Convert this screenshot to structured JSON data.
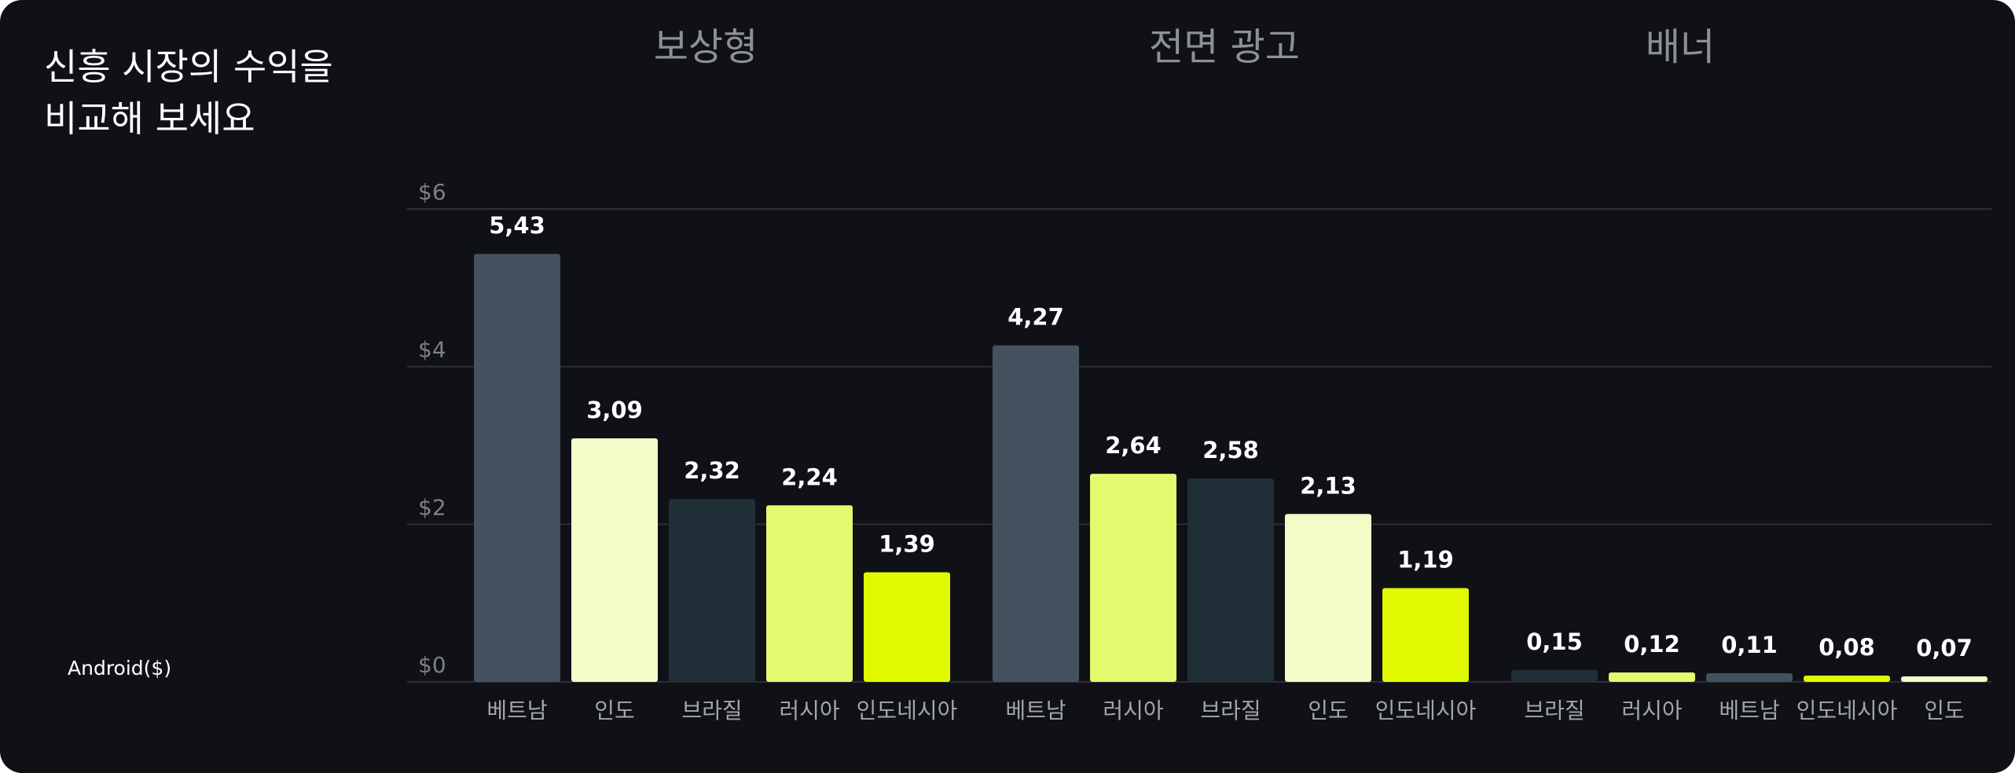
{
  "title": "신흥 시장의 수익을\n비교해 보세요",
  "legend_label": "Android($)",
  "colors": {
    "background": "#0f1117",
    "gridline": "#2c2f35",
    "베트남": "#43525e",
    "인도": "#f2fcc9",
    "브라질": "#202e38",
    "러시아": "#e3fa6e",
    "인도네시아": "#e1f900"
  },
  "chart_data": {
    "type": "bar",
    "ylim": [
      0,
      6
    ],
    "yticks": [
      {
        "value": 0,
        "label": "$0"
      },
      {
        "value": 2,
        "label": "$2"
      },
      {
        "value": 4,
        "label": "$4"
      },
      {
        "value": 6,
        "label": "$6"
      }
    ],
    "grid": true,
    "groups": [
      {
        "name": "보상형",
        "categories": [
          "베트남",
          "인도",
          "브라질",
          "러시아",
          "인도네시아"
        ],
        "values": [
          5.43,
          3.09,
          2.32,
          2.24,
          1.39
        ],
        "labels": [
          "5,43",
          "3,09",
          "2,32",
          "2,24",
          "1,39"
        ]
      },
      {
        "name": "전면 광고",
        "categories": [
          "베트남",
          "러시아",
          "브라질",
          "인도",
          "인도네시아"
        ],
        "values": [
          4.27,
          2.64,
          2.58,
          2.13,
          1.19
        ],
        "labels": [
          "4,27",
          "2,64",
          "2,58",
          "2,13",
          "1,19"
        ]
      },
      {
        "name": "배너",
        "categories": [
          "브라질",
          "러시아",
          "베트남",
          "인도네시아",
          "인도"
        ],
        "values": [
          0.15,
          0.12,
          0.11,
          0.08,
          0.07
        ],
        "labels": [
          "0,15",
          "0,12",
          "0,11",
          "0,08",
          "0,07"
        ]
      }
    ]
  }
}
